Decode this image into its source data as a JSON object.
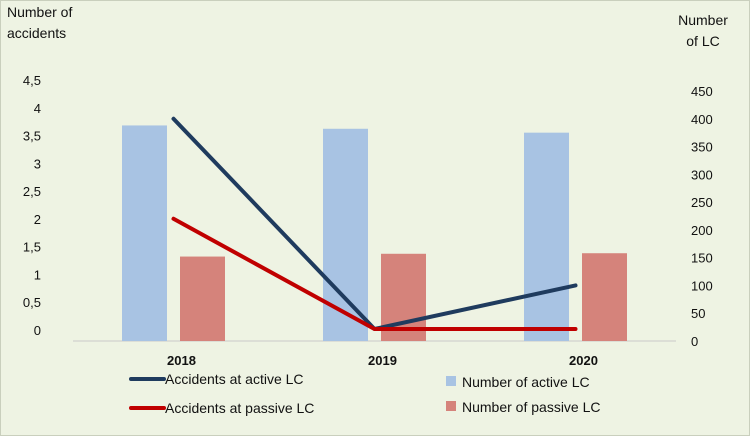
{
  "chart_data": {
    "type": "bar+line",
    "categories": [
      "2018",
      "2019",
      "2020"
    ],
    "left_axis": {
      "title_lines": [
        "Number of",
        "accidents"
      ],
      "range": [
        0,
        4.5
      ],
      "ticks": [
        "0",
        "0,5",
        "1",
        "1,5",
        "2",
        "2,5",
        "3",
        "3,5",
        "4",
        "4,5"
      ]
    },
    "right_axis": {
      "title_lines": [
        "Number",
        "of LC"
      ],
      "range": [
        0,
        450
      ],
      "ticks": [
        "0",
        "50",
        "100",
        "150",
        "200",
        "250",
        "300",
        "350",
        "400",
        "450"
      ]
    },
    "bar_series": [
      {
        "name": "Number of active LC",
        "axis": "right",
        "color": "#a8c3e3",
        "values": [
          388,
          382,
          375
        ]
      },
      {
        "name": "Number of passive LC",
        "axis": "right",
        "color": "#d5837b",
        "values": [
          152,
          157,
          158
        ]
      }
    ],
    "line_series": [
      {
        "name": "Accidents at active LC",
        "axis": "left",
        "color": "#1f3b5e",
        "values": [
          4,
          0,
          1
        ]
      },
      {
        "name": "Accidents at passive LC",
        "axis": "left",
        "color": "#c00000",
        "values": [
          2.2,
          0,
          0
        ]
      }
    ],
    "legend": "bottom",
    "grid": false
  }
}
